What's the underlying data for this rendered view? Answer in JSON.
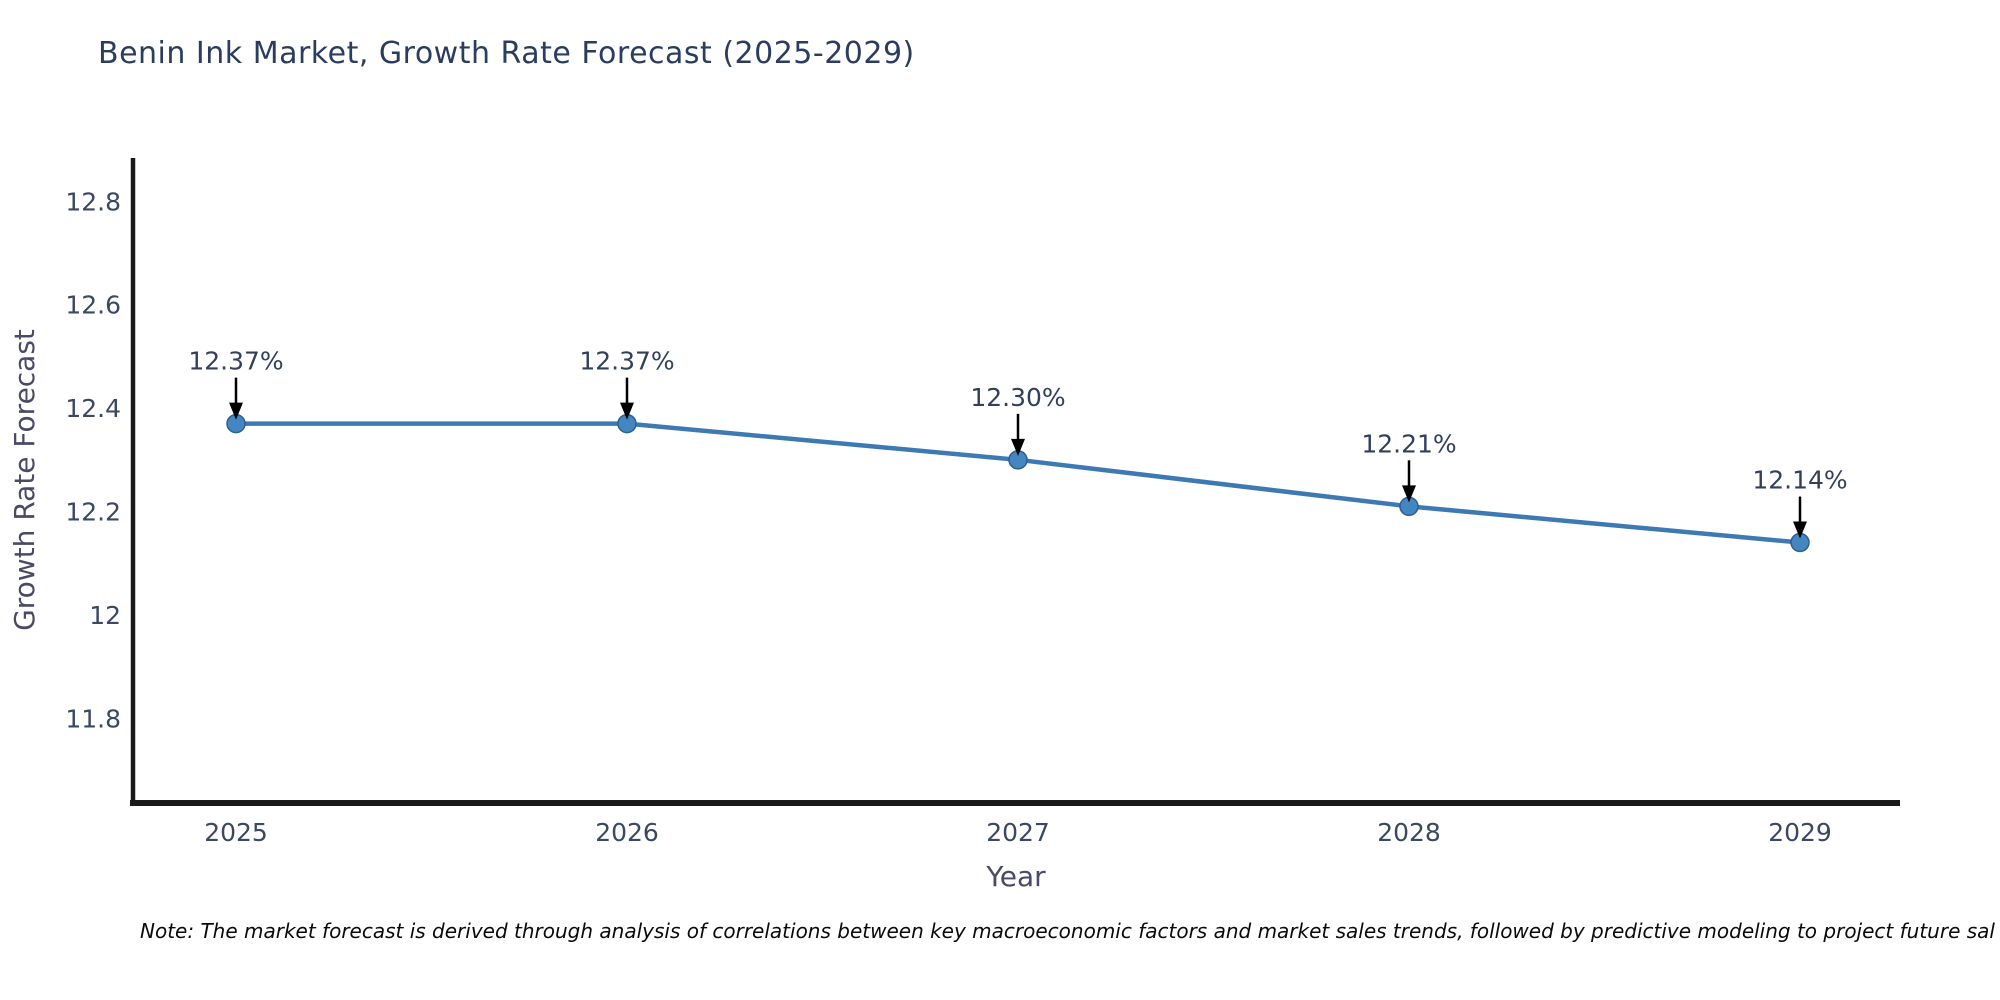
{
  "chart": {
    "title": "Benin Ink Market, Growth Rate Forecast (2025-2029)",
    "xlabel": "Year",
    "ylabel": "Growth Rate Forecast"
  },
  "chart_data": {
    "type": "line",
    "title": "Benin Ink Market, Growth Rate Forecast (2025-2029)",
    "xlabel": "Year",
    "ylabel": "Growth Rate Forecast",
    "x": [
      2025,
      2026,
      2027,
      2028,
      2029
    ],
    "xtick_labels": [
      "2025",
      "2026",
      "2027",
      "2028",
      "2029"
    ],
    "series": [
      {
        "name": "Growth Rate Forecast",
        "values": [
          12.37,
          12.37,
          12.3,
          12.21,
          12.14
        ]
      }
    ],
    "point_labels": [
      "12.37%",
      "12.37%",
      "12.30%",
      "12.21%",
      "12.14%"
    ],
    "yticks": [
      12.8,
      12.6,
      12.4,
      12.2,
      12.0,
      11.8
    ],
    "ytick_labels": [
      "12.8",
      "12.6",
      "12.4",
      "12.2",
      "12",
      "11.8"
    ],
    "ylim": [
      11.64,
      12.88
    ],
    "grid": false,
    "legend": false,
    "line_color": "#3d79b2",
    "marker_color": "#4486c1",
    "marker_edge_color": "#2f5f8f",
    "axis_line_color": "#1a1a1a",
    "annotation_arrow_color": "#000000"
  },
  "note": "Note: The market forecast is derived through analysis of correlations between key macroeconomic factors and market sales trends, followed by predictive modeling to project future sal"
}
